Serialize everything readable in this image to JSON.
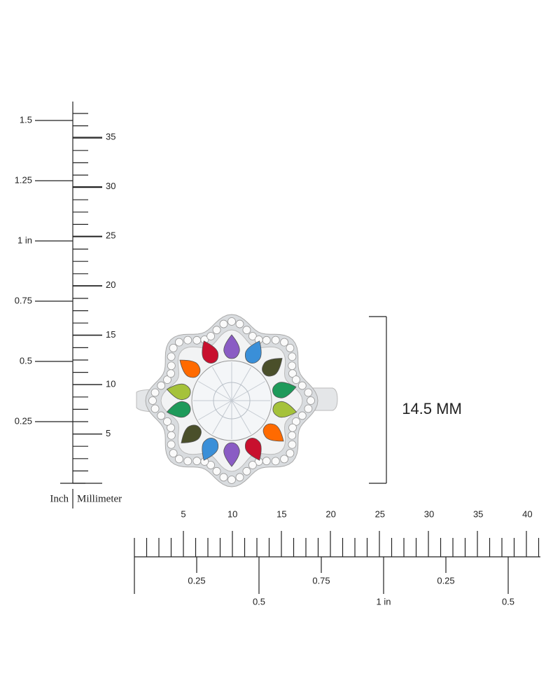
{
  "vertical_ruler": {
    "inch_labels": [
      "1.5",
      "1.25",
      "1 in",
      "0.75",
      "0.5",
      "0.25"
    ],
    "mm_labels": [
      "35",
      "30",
      "25",
      "20",
      "15",
      "10",
      "5"
    ],
    "inch_caption": "Inch",
    "mm_caption": "Millimeter"
  },
  "horizontal_ruler": {
    "mm_labels": [
      "5",
      "10",
      "15",
      "20",
      "25",
      "30",
      "35",
      "40"
    ],
    "inch_labels": [
      "0.25",
      "0.5",
      "0.75",
      "1 in",
      "0.25",
      "0.5"
    ]
  },
  "dimension": {
    "label": "14.5 MM"
  }
}
